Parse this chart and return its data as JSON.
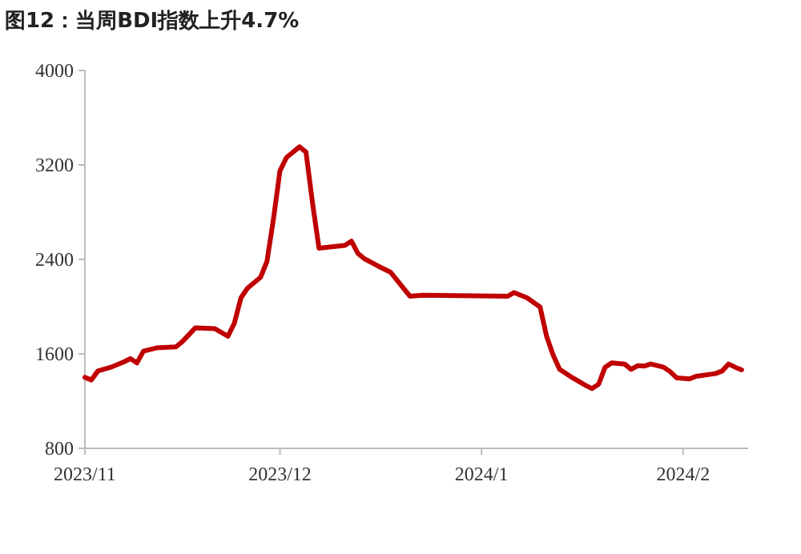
{
  "chart_data": {
    "type": "line",
    "title": "图12：当周BDI指数上升4.7%",
    "x": [
      "2023-11-01",
      "2023-11-02",
      "2023-11-03",
      "2023-11-05",
      "2023-11-07",
      "2023-11-08",
      "2023-11-09",
      "2023-11-10",
      "2023-11-12",
      "2023-11-15",
      "2023-11-16",
      "2023-11-18",
      "2023-11-21",
      "2023-11-23",
      "2023-11-24",
      "2023-11-25",
      "2023-11-26",
      "2023-11-28",
      "2023-11-29",
      "2023-11-30",
      "2023-12-01",
      "2023-12-02",
      "2023-12-04",
      "2023-12-05",
      "2023-12-06",
      "2023-12-07",
      "2023-12-11",
      "2023-12-12",
      "2023-12-13",
      "2023-12-14",
      "2023-12-16",
      "2023-12-18",
      "2023-12-21",
      "2023-12-23",
      "2024-01-05",
      "2024-01-06",
      "2024-01-08",
      "2024-01-10",
      "2024-01-11",
      "2024-01-12",
      "2024-01-13",
      "2024-01-15",
      "2024-01-17",
      "2024-01-18",
      "2024-01-19",
      "2024-01-20",
      "2024-01-21",
      "2024-01-23",
      "2024-01-24",
      "2024-01-25",
      "2024-01-26",
      "2024-01-27",
      "2024-01-29",
      "2024-01-30",
      "2024-01-31",
      "2024-02-02",
      "2024-02-03",
      "2024-02-06",
      "2024-02-07",
      "2024-02-08",
      "2024-02-09",
      "2024-02-10"
    ],
    "series": [
      {
        "color": "#c00000",
        "values": [
          1401,
          1379,
          1455,
          1487,
          1532,
          1559,
          1523,
          1623,
          1650,
          1659,
          1704,
          1821,
          1813,
          1749,
          1862,
          2075,
          2156,
          2247,
          2383,
          2743,
          3150,
          3263,
          3353,
          3309,
          2880,
          2495,
          2518,
          2554,
          2450,
          2405,
          2346,
          2292,
          2088,
          2097,
          2088,
          2119,
          2075,
          1997,
          1749,
          1591,
          1469,
          1397,
          1333,
          1306,
          1342,
          1487,
          1523,
          1514,
          1469,
          1500,
          1496,
          1514,
          1487,
          1450,
          1397,
          1388,
          1410,
          1433,
          1455,
          1514,
          1487,
          1465
        ]
      }
    ],
    "xlim": [
      "2023-11-01",
      "2024-02-11"
    ],
    "xticks": [
      {
        "value": "2023-11-01",
        "label": "2023/11"
      },
      {
        "value": "2023-12-01",
        "label": "2023/12"
      },
      {
        "value": "2024-01-01",
        "label": "2024/1"
      },
      {
        "value": "2024-02-01",
        "label": "2024/2"
      }
    ],
    "ylim": [
      800,
      4000
    ],
    "yticks": [
      800,
      1600,
      2400,
      3200,
      4000
    ],
    "grid": false
  }
}
